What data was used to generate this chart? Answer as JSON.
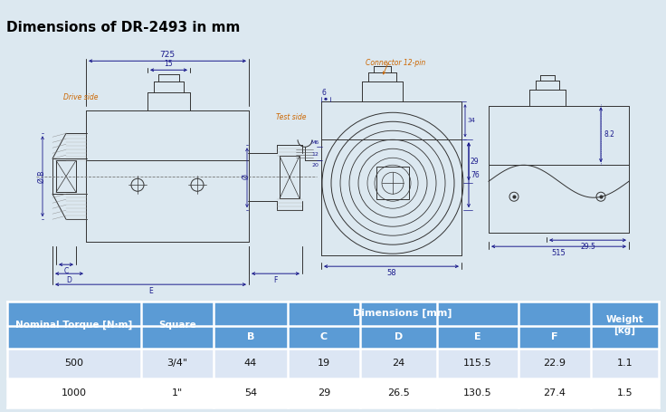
{
  "title": "Dimensions of DR-2493 in mm",
  "title_bg_color": "#c8ddef",
  "title_font_color": "#000000",
  "table_header_bg": "#5b9bd5",
  "table_row1_bg": "#dce6f4",
  "table_border_color": "#ffffff",
  "bg_color": "#dce8f0",
  "drawing_bg": "#ffffff",
  "dim_color": "#1a1a8c",
  "label_orange": "#cc6600",
  "rows": [
    [
      "500",
      "3/4\"",
      "44",
      "19",
      "24",
      "115.5",
      "22.9",
      "1.1"
    ],
    [
      "1000",
      "1\"",
      "54",
      "29",
      "26.5",
      "130.5",
      "27.4",
      "1.5"
    ]
  ]
}
